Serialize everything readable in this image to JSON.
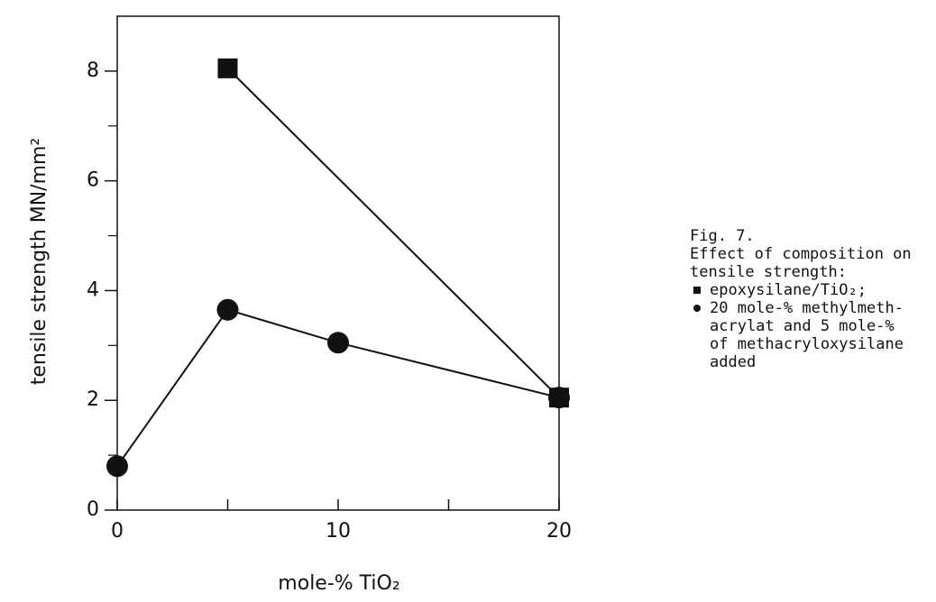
{
  "chart_data": {
    "type": "line",
    "xlabel": "mole-% TiO₂",
    "ylabel": "tensile strength  MN/mm²",
    "caption": [
      "Fig. 7.",
      "Effect of composition on",
      "tensile strength:"
    ],
    "xlim": [
      0,
      20
    ],
    "ylim": [
      0,
      9
    ],
    "xticks": [
      0,
      10,
      20
    ],
    "xminor_ticks": [
      5,
      15
    ],
    "yticks": [
      0,
      2,
      4,
      6,
      8
    ],
    "yminor_ticks": [
      1,
      3,
      5,
      7
    ],
    "series": [
      {
        "name": "epoxysilane/TiO₂;",
        "marker": "square",
        "color": "#111111",
        "x": [
          5,
          20
        ],
        "values": [
          8.05,
          2.05
        ]
      },
      {
        "name": "20 mole-% methylmeth-\nacrylat and 5 mole-%\nof methacryloxysilane\nadded",
        "marker": "circle",
        "color": "#111111",
        "x": [
          0,
          5,
          10,
          20
        ],
        "values": [
          0.8,
          3.65,
          3.05,
          2.05
        ]
      }
    ]
  }
}
